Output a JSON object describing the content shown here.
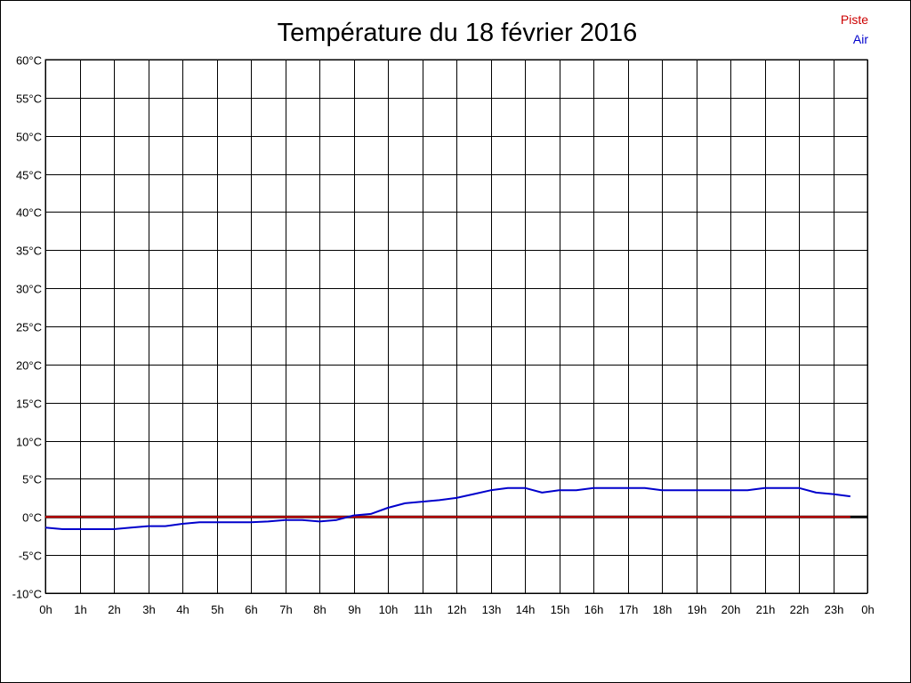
{
  "chart_data": {
    "type": "line",
    "title": "Température du 18 février 2016",
    "xlabel": "",
    "ylabel": "",
    "x_ticks": [
      "0h",
      "1h",
      "2h",
      "3h",
      "4h",
      "5h",
      "6h",
      "7h",
      "8h",
      "9h",
      "10h",
      "11h",
      "12h",
      "13h",
      "14h",
      "15h",
      "16h",
      "17h",
      "18h",
      "19h",
      "20h",
      "21h",
      "22h",
      "23h",
      "0h"
    ],
    "y_ticks": [
      "60°C",
      "55°C",
      "50°C",
      "45°C",
      "40°C",
      "35°C",
      "30°C",
      "25°C",
      "20°C",
      "15°C",
      "10°C",
      "5°C",
      "0°C",
      "-5°C",
      "-10°C"
    ],
    "xlim": [
      0,
      24
    ],
    "ylim": [
      -10,
      60
    ],
    "grid": true,
    "legend_position": "top-right",
    "series": [
      {
        "name": "Piste",
        "color": "#cc0000",
        "x": [
          0,
          23.5
        ],
        "y": [
          0,
          0
        ]
      },
      {
        "name": "Air",
        "color": "#0000cc",
        "x": [
          0,
          0.5,
          1,
          1.5,
          2,
          2.5,
          3,
          3.5,
          4,
          4.5,
          5,
          5.5,
          6,
          6.5,
          7,
          7.5,
          8,
          8.5,
          9,
          9.5,
          10,
          10.5,
          11,
          11.5,
          12,
          12.5,
          13,
          13.5,
          14,
          14.5,
          15,
          15.5,
          16,
          16.5,
          17,
          17.5,
          18,
          18.5,
          19,
          19.5,
          20,
          20.5,
          21,
          21.5,
          22,
          22.5,
          23,
          23.5
        ],
        "y": [
          -1.4,
          -1.6,
          -1.6,
          -1.6,
          -1.6,
          -1.4,
          -1.2,
          -1.2,
          -0.9,
          -0.7,
          -0.7,
          -0.7,
          -0.7,
          -0.6,
          -0.4,
          -0.4,
          -0.6,
          -0.4,
          0.2,
          0.4,
          1.2,
          1.8,
          2.0,
          2.2,
          2.5,
          3.0,
          3.5,
          3.8,
          3.8,
          3.2,
          3.5,
          3.5,
          3.8,
          3.8,
          3.8,
          3.8,
          3.5,
          3.5,
          3.5,
          3.5,
          3.5,
          3.5,
          3.8,
          3.8,
          3.8,
          3.2,
          3.0,
          2.7
        ]
      }
    ]
  }
}
